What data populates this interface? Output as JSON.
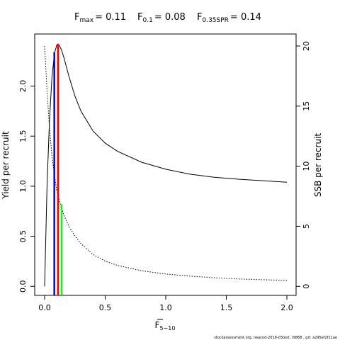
{
  "chart_data": {
    "type": "line",
    "title": {
      "fmax": {
        "base": "F",
        "sub": "max",
        "value": "= 0.11"
      },
      "f01": {
        "base": "F",
        "sub": "0.1",
        "value": "= 0.08"
      },
      "fspr": {
        "base": "F",
        "sub": "0.35SPR",
        "value": "= 0.14"
      }
    },
    "xlabel": {
      "base": "F",
      "sub": "5−10"
    },
    "ylabel": "Yield per recruit",
    "y2label": "SSB per recruit",
    "xlim": [
      0,
      2
    ],
    "ylim": [
      -0.09,
      2.52
    ],
    "y2lim": [
      -0.75,
      21
    ],
    "xticks": [
      "0.0",
      "0.5",
      "1.0",
      "1.5",
      "2.0"
    ],
    "yticks": [
      "0.0",
      "0.5",
      "1.0",
      "1.5",
      "2.0"
    ],
    "y2ticks": [
      "0",
      "5",
      "10",
      "15",
      "20"
    ],
    "series": [
      {
        "axis": "left",
        "style": "solid",
        "x": [
          0,
          0.02,
          0.04,
          0.06,
          0.08,
          0.1,
          0.11,
          0.12,
          0.14,
          0.16,
          0.2,
          0.25,
          0.3,
          0.4,
          0.5,
          0.6,
          0.8,
          1.0,
          1.2,
          1.4,
          1.6,
          1.8,
          2.0
        ],
        "y": [
          0,
          1.0,
          1.65,
          2.08,
          2.32,
          2.41,
          2.42,
          2.41,
          2.36,
          2.28,
          2.1,
          1.9,
          1.75,
          1.55,
          1.43,
          1.35,
          1.24,
          1.17,
          1.12,
          1.09,
          1.07,
          1.055,
          1.04
        ]
      },
      {
        "axis": "right",
        "style": "dotted",
        "x": [
          0,
          0.02,
          0.04,
          0.06,
          0.08,
          0.1,
          0.12,
          0.14,
          0.16,
          0.2,
          0.25,
          0.3,
          0.4,
          0.5,
          0.6,
          0.8,
          1.0,
          1.2,
          1.4,
          1.6,
          1.8,
          2.0
        ],
        "y": [
          20.0,
          16.3,
          13.2,
          10.9,
          9.3,
          8.0,
          7.2,
          6.5,
          5.9,
          5.0,
          4.2,
          3.55,
          2.65,
          2.1,
          1.75,
          1.3,
          1.03,
          0.85,
          0.72,
          0.62,
          0.55,
          0.5
        ]
      }
    ],
    "reference_lines": [
      {
        "x": 0.08,
        "color": "#0000ff",
        "y": 2.34
      },
      {
        "x": 0.11,
        "color": "#ff0000",
        "y": 2.42
      },
      {
        "x": 0.14,
        "color": "#00ff00",
        "y": 0.82
      }
    ]
  },
  "footer": "stockassessment.org, neacod-2018-03test, r9868 , git: a295ef2f11ae"
}
